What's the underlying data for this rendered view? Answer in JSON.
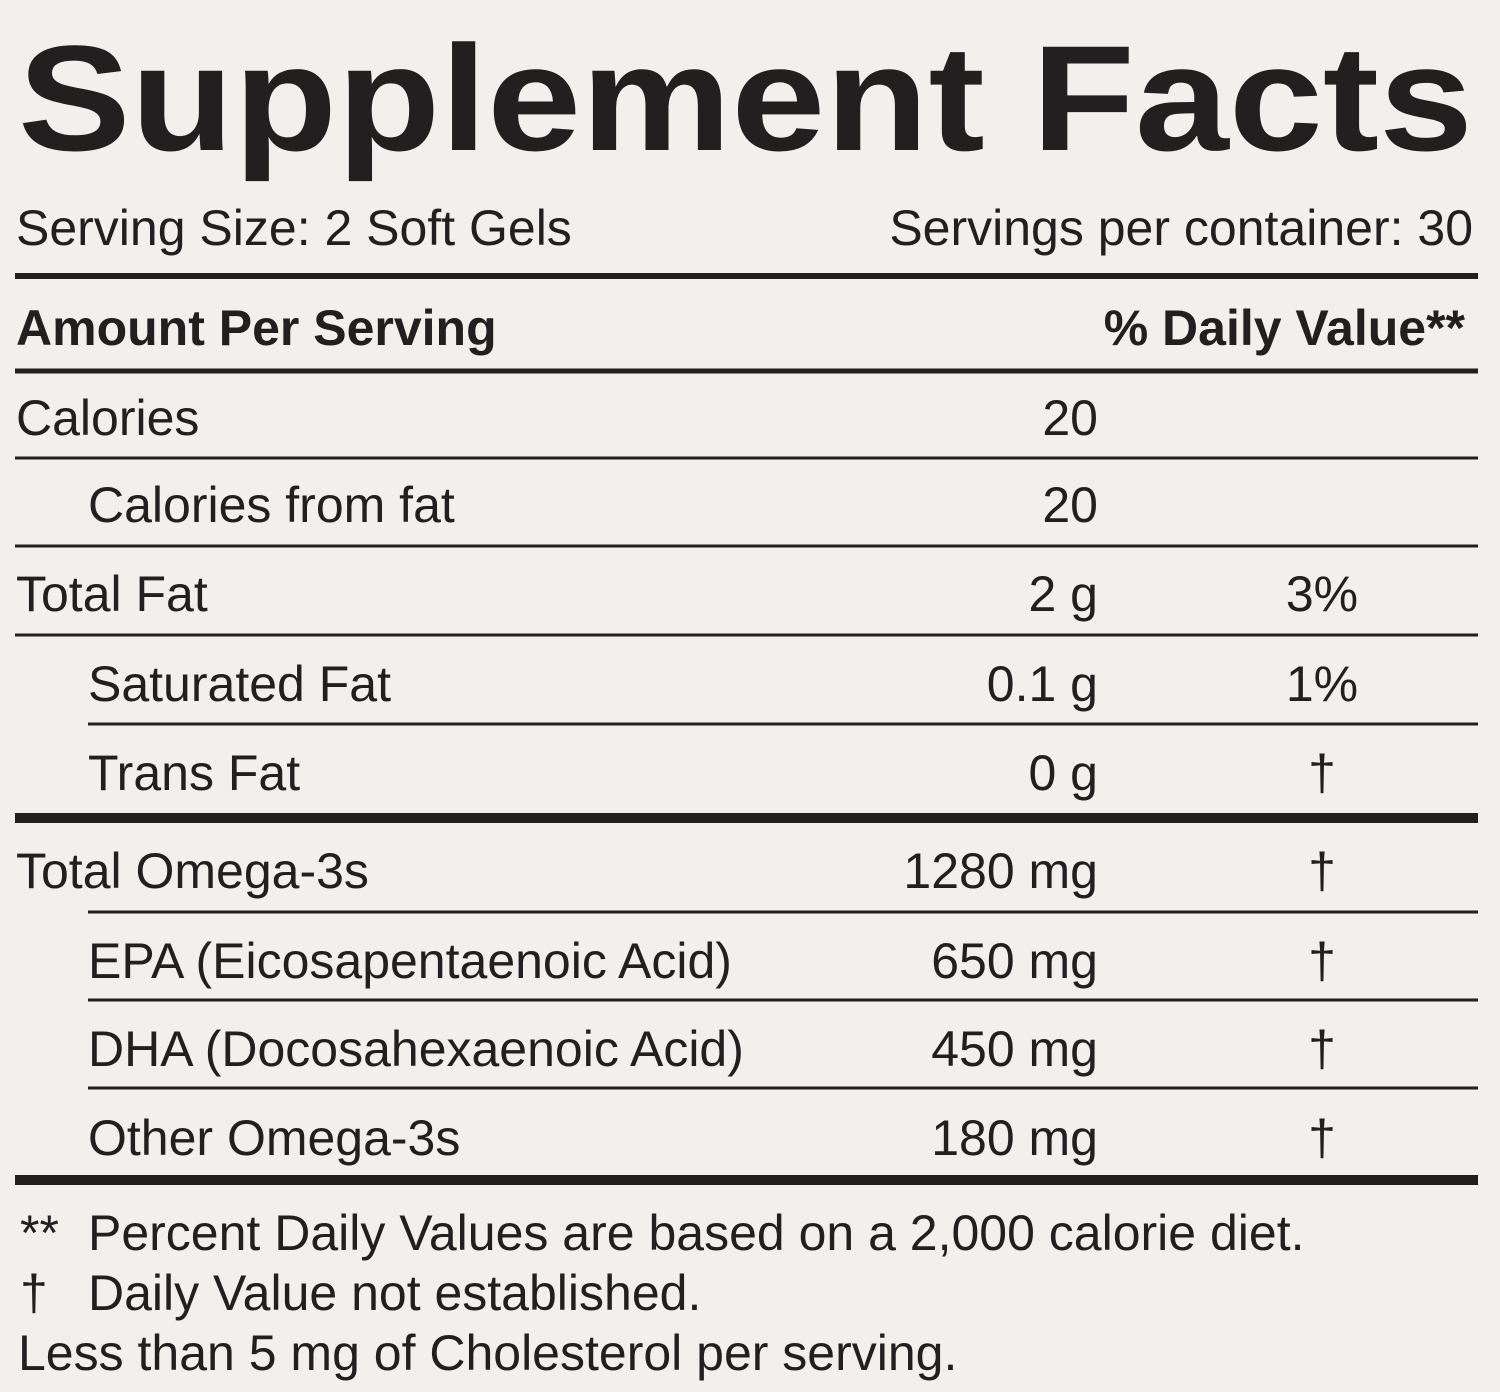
{
  "title": "Supplement Facts",
  "serving_size": "Serving Size: 2 Soft Gels",
  "servings_per_container": "Servings per container: 30",
  "header": {
    "amount": "Amount Per Serving",
    "daily_value": "% Daily Value**"
  },
  "rows": [
    {
      "name": "Calories",
      "amount": "20"
    },
    {
      "name": "Calories from fat",
      "amount": "20"
    },
    {
      "name": "Total Fat",
      "amount": "2 g",
      "daily_value": "3%"
    },
    {
      "name": "Saturated Fat",
      "amount": "0.1 g",
      "daily_value": "1%"
    },
    {
      "name": "Trans Fat",
      "amount": "0 g",
      "daily_value": "†"
    },
    {
      "name": "Total Omega-3s",
      "amount": "1280 mg",
      "daily_value": "†"
    },
    {
      "name": "EPA (Eicosapentaenoic Acid)",
      "amount": "650 mg",
      "daily_value": "†"
    },
    {
      "name": "DHA (Docosahexaenoic Acid)",
      "amount": "450 mg",
      "daily_value": "†"
    },
    {
      "name": "Other Omega-3s",
      "amount": "180 mg",
      "daily_value": "†"
    }
  ],
  "footnotes": [
    {
      "mark": "**",
      "text": "Percent Daily Values are based on a 2,000 calorie diet."
    },
    {
      "mark": "†",
      "text": "Daily Value not established."
    },
    {
      "text": "Less than 5 mg of Cholesterol per serving."
    }
  ]
}
